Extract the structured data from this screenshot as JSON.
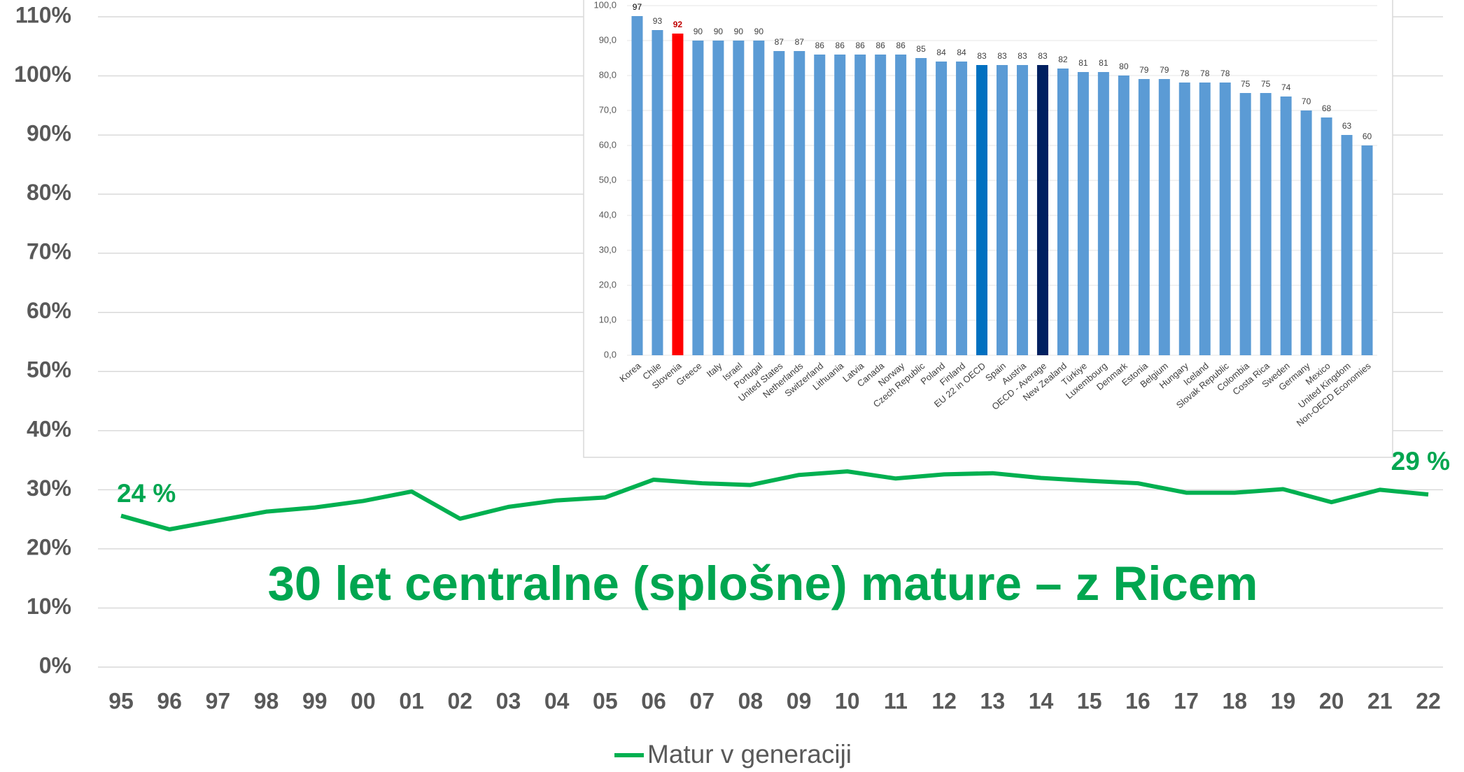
{
  "chart_data": [
    {
      "type": "line",
      "title": "30 let centralne (splošne) mature – z Ricem",
      "categories": [
        "95",
        "96",
        "97",
        "98",
        "99",
        "00",
        "01",
        "02",
        "03",
        "04",
        "05",
        "06",
        "07",
        "08",
        "09",
        "10",
        "11",
        "12",
        "13",
        "14",
        "15",
        "16",
        "17",
        "18",
        "19",
        "20",
        "21",
        "22"
      ],
      "series": [
        {
          "name": "Matur v generaciji",
          "color": "#00b050",
          "values": [
            25.6,
            23.3,
            24.8,
            26.3,
            27.0,
            28.1,
            29.7,
            25.1,
            27.1,
            28.2,
            28.7,
            31.7,
            31.1,
            30.8,
            32.5,
            33.1,
            31.9,
            32.6,
            32.8,
            32.0,
            31.5,
            31.1,
            29.5,
            29.5,
            30.1,
            27.9,
            30.0,
            29.2
          ]
        }
      ],
      "annotations": [
        "24 %",
        "29 %"
      ],
      "ylim": [
        0,
        110
      ],
      "yticks": [
        {
          "value": 0,
          "label": "0%"
        },
        {
          "value": 10,
          "label": "10%"
        },
        {
          "value": 20,
          "label": "20%"
        },
        {
          "value": 30,
          "label": "30%"
        },
        {
          "value": 40,
          "label": "40%"
        },
        {
          "value": 50,
          "label": "50%"
        },
        {
          "value": 60,
          "label": "60%"
        },
        {
          "value": 70,
          "label": "70%"
        },
        {
          "value": 80,
          "label": "80%"
        },
        {
          "value": 90,
          "label": "90%"
        },
        {
          "value": 100,
          "label": "100%"
        },
        {
          "value": 110,
          "label": "110%"
        }
      ],
      "grid": true,
      "legend": "bottom"
    },
    {
      "type": "bar",
      "categories": [
        "Korea",
        "Chile",
        "Slovenia",
        "Greece",
        "Italy",
        "Israel",
        "Portugal",
        "United States",
        "Netherlands",
        "Switzerland",
        "Lithuania",
        "Latvia",
        "Canada",
        "Norway",
        "Czech Republic",
        "Poland",
        "Finland",
        "EU 22 in OECD",
        "Spain",
        "Austria",
        "OECD - Average",
        "New Zealand",
        "Türkiye",
        "Luxembourg",
        "Denmark",
        "Estonia",
        "Belgium",
        "Hungary",
        "Iceland",
        "Slovak Republic",
        "Colombia",
        "Costa Rica",
        "Sweden",
        "Germany",
        "Mexico",
        "United Kingdom",
        "Non-OECD Economies"
      ],
      "values": [
        97,
        93,
        92,
        90,
        90,
        90,
        90,
        87,
        87,
        86,
        86,
        86,
        86,
        86,
        85,
        84,
        84,
        83,
        83,
        83,
        83,
        82,
        81,
        81,
        80,
        79,
        79,
        78,
        78,
        78,
        75,
        75,
        74,
        70,
        68,
        63,
        60
      ],
      "colors": [
        "#5b9bd5",
        "#5b9bd5",
        "#ff0000",
        "#5b9bd5",
        "#5b9bd5",
        "#5b9bd5",
        "#5b9bd5",
        "#5b9bd5",
        "#5b9bd5",
        "#5b9bd5",
        "#5b9bd5",
        "#5b9bd5",
        "#5b9bd5",
        "#5b9bd5",
        "#5b9bd5",
        "#5b9bd5",
        "#5b9bd5",
        "#0070c0",
        "#5b9bd5",
        "#5b9bd5",
        "#002060",
        "#5b9bd5",
        "#5b9bd5",
        "#5b9bd5",
        "#5b9bd5",
        "#5b9bd5",
        "#5b9bd5",
        "#5b9bd5",
        "#5b9bd5",
        "#5b9bd5",
        "#5b9bd5",
        "#5b9bd5",
        "#5b9bd5",
        "#5b9bd5",
        "#5b9bd5",
        "#5b9bd5",
        "#5b9bd5"
      ],
      "value_label_colors": [
        "#000000",
        "#404040",
        "#c00000",
        "#404040",
        "#404040",
        "#404040",
        "#404040",
        "#404040",
        "#404040",
        "#404040",
        "#404040",
        "#404040",
        "#404040",
        "#404040",
        "#404040",
        "#404040",
        "#404040",
        "#404040",
        "#404040",
        "#404040",
        "#404040",
        "#404040",
        "#404040",
        "#404040",
        "#404040",
        "#404040",
        "#404040",
        "#404040",
        "#404040",
        "#404040",
        "#404040",
        "#404040",
        "#404040",
        "#404040",
        "#404040",
        "#404040",
        "#404040"
      ],
      "ylim": [
        0,
        100
      ],
      "yticks": [
        {
          "value": 0,
          "label": "0,0"
        },
        {
          "value": 10,
          "label": "10,0"
        },
        {
          "value": 20,
          "label": "20,0"
        },
        {
          "value": 30,
          "label": "30,0"
        },
        {
          "value": 40,
          "label": "40,0"
        },
        {
          "value": 50,
          "label": "50,0"
        },
        {
          "value": 60,
          "label": "60,0"
        },
        {
          "value": 70,
          "label": "70,0"
        },
        {
          "value": 80,
          "label": "80,0"
        },
        {
          "value": 90,
          "label": "90,0"
        },
        {
          "value": 100,
          "label": "100,0"
        }
      ],
      "grid": true
    }
  ]
}
